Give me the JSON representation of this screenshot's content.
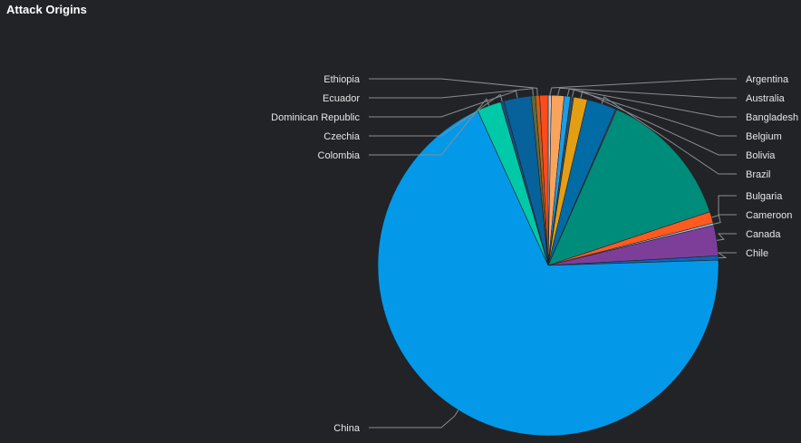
{
  "panel": {
    "title": "Attack Origins"
  },
  "chart_data": {
    "type": "pie",
    "title": "Attack Origins",
    "start_angle_deg": 0,
    "slices": [
      {
        "label": "Argentina",
        "value": 0.3,
        "color": "#c7c7c7"
      },
      {
        "label": "Australia",
        "value": 1.2,
        "color": "#f9a45d"
      },
      {
        "label": "Bangladesh",
        "value": 0.6,
        "color": "#1a9ee6"
      },
      {
        "label": "Belgium",
        "value": 0.3,
        "color": "#2e4a62"
      },
      {
        "label": "Bolivia",
        "value": 1.3,
        "color": "#e49e13"
      },
      {
        "label": "Brazil",
        "value": 2.8,
        "color": "#006ba4"
      },
      {
        "label": "",
        "value": 0.1,
        "color": "#a0367a"
      },
      {
        "label": "",
        "value": 13.3,
        "color": "#008c7a"
      },
      {
        "label": "Bulgaria",
        "value": 1.1,
        "color": "#ff5a1f"
      },
      {
        "label": "Cameroon",
        "value": 0.2,
        "color": "#9fc4e6"
      },
      {
        "label": "Canada",
        "value": 2.9,
        "color": "#7d3e9a"
      },
      {
        "label": "Chile",
        "value": 0.4,
        "color": "#0f64b8"
      },
      {
        "label": "China",
        "value": 68.7,
        "color": "#0399e8"
      },
      {
        "label": "Colombia",
        "value": 2.3,
        "color": "#00c9a8"
      },
      {
        "label": "Czechia",
        "value": 0.3,
        "color": "#1b4f79"
      },
      {
        "label": "Dominican Republic",
        "value": 2.6,
        "color": "#07619b"
      },
      {
        "label": "Ecuador",
        "value": 0.4,
        "color": "#5f6a3a"
      },
      {
        "label": "Ethiopia",
        "value": 0.4,
        "color": "#c95f16"
      },
      {
        "label": "",
        "value": 0.8,
        "color": "#ff4a1c"
      }
    ],
    "label_order_right": [
      "Argentina",
      "Australia",
      "Bangladesh",
      "Belgium",
      "Bolivia",
      "Brazil",
      "Bulgaria",
      "Cameroon",
      "Canada",
      "Chile"
    ],
    "label_order_left": [
      "Ethiopia",
      "Ecuador",
      "Dominican Republic",
      "Czechia",
      "Colombia",
      "China"
    ]
  }
}
